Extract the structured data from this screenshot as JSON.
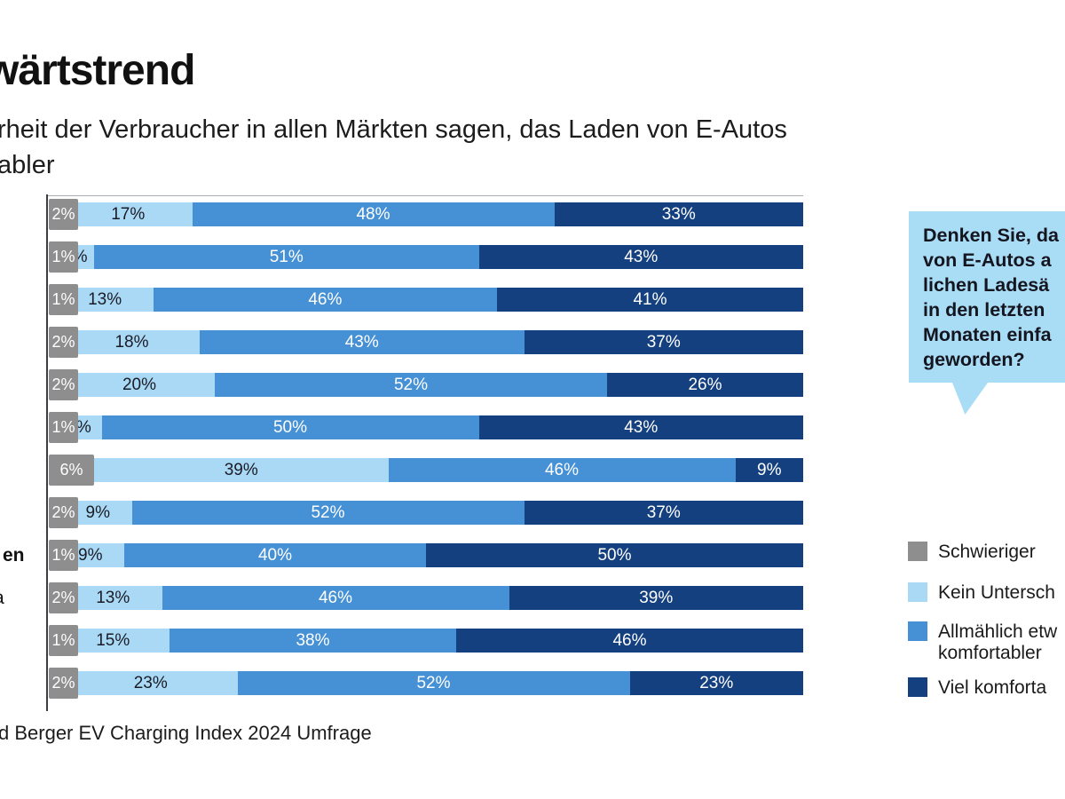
{
  "header": {
    "title_fragment": "wärtstrend",
    "subtitle_line1": "rheit der Verbraucher in allen Märkten sagen, das Laden von E-Autos",
    "subtitle_line2": "abler"
  },
  "question_bubble": {
    "lines": [
      "Denken Sie, da",
      "von E-Autos a",
      "lichen Ladesä",
      "in den letzten",
      "Monaten einfa",
      "geworden?"
    ],
    "background_color": "#a9dcf5"
  },
  "legend": {
    "items": [
      {
        "label": "Schwieriger",
        "label_line2": "",
        "color": "#8e8e8e"
      },
      {
        "label": "Kein Untersch",
        "label_line2": "",
        "color": "#a9d9f4"
      },
      {
        "label": "Allmählich etw",
        "label_line2": "komfortabler",
        "color": "#4691d5"
      },
      {
        "label": "Viel komforta",
        "label_line2": "",
        "color": "#15407f"
      }
    ]
  },
  "row_label_fragments": [
    {
      "text": "en",
      "row_index": 8,
      "bold": true
    },
    {
      "text": "a",
      "row_index": 9,
      "bold": false
    }
  ],
  "source": {
    "text": "d Berger EV Charging Index 2024 Umfrage"
  },
  "chart_data": {
    "type": "bar",
    "orientation": "horizontal",
    "stacked": true,
    "unit": "%",
    "xlim": [
      0,
      100
    ],
    "series_names": [
      "Schwieriger",
      "Kein Untersch…",
      "Allmählich etw… komfortabler",
      "Viel komforta…"
    ],
    "colors": [
      "#8e8e8e",
      "#a9d9f4",
      "#4691d5",
      "#15407f"
    ],
    "label_colors": [
      "#ffffff",
      "#1b1b26",
      "#ffffff",
      "#ffffff"
    ],
    "rows": [
      {
        "values": [
          2,
          17,
          48,
          33
        ]
      },
      {
        "values": [
          1,
          5,
          51,
          43
        ]
      },
      {
        "values": [
          1,
          13,
          46,
          41
        ]
      },
      {
        "values": [
          2,
          18,
          43,
          37
        ]
      },
      {
        "values": [
          2,
          20,
          52,
          26
        ]
      },
      {
        "values": [
          1,
          6,
          50,
          43
        ]
      },
      {
        "values": [
          6,
          39,
          46,
          9
        ]
      },
      {
        "values": [
          2,
          9,
          52,
          37
        ]
      },
      {
        "values": [
          1,
          9,
          40,
          50
        ]
      },
      {
        "values": [
          2,
          13,
          46,
          39
        ]
      },
      {
        "values": [
          1,
          15,
          38,
          46
        ]
      },
      {
        "values": [
          2,
          23,
          52,
          23
        ]
      }
    ]
  }
}
